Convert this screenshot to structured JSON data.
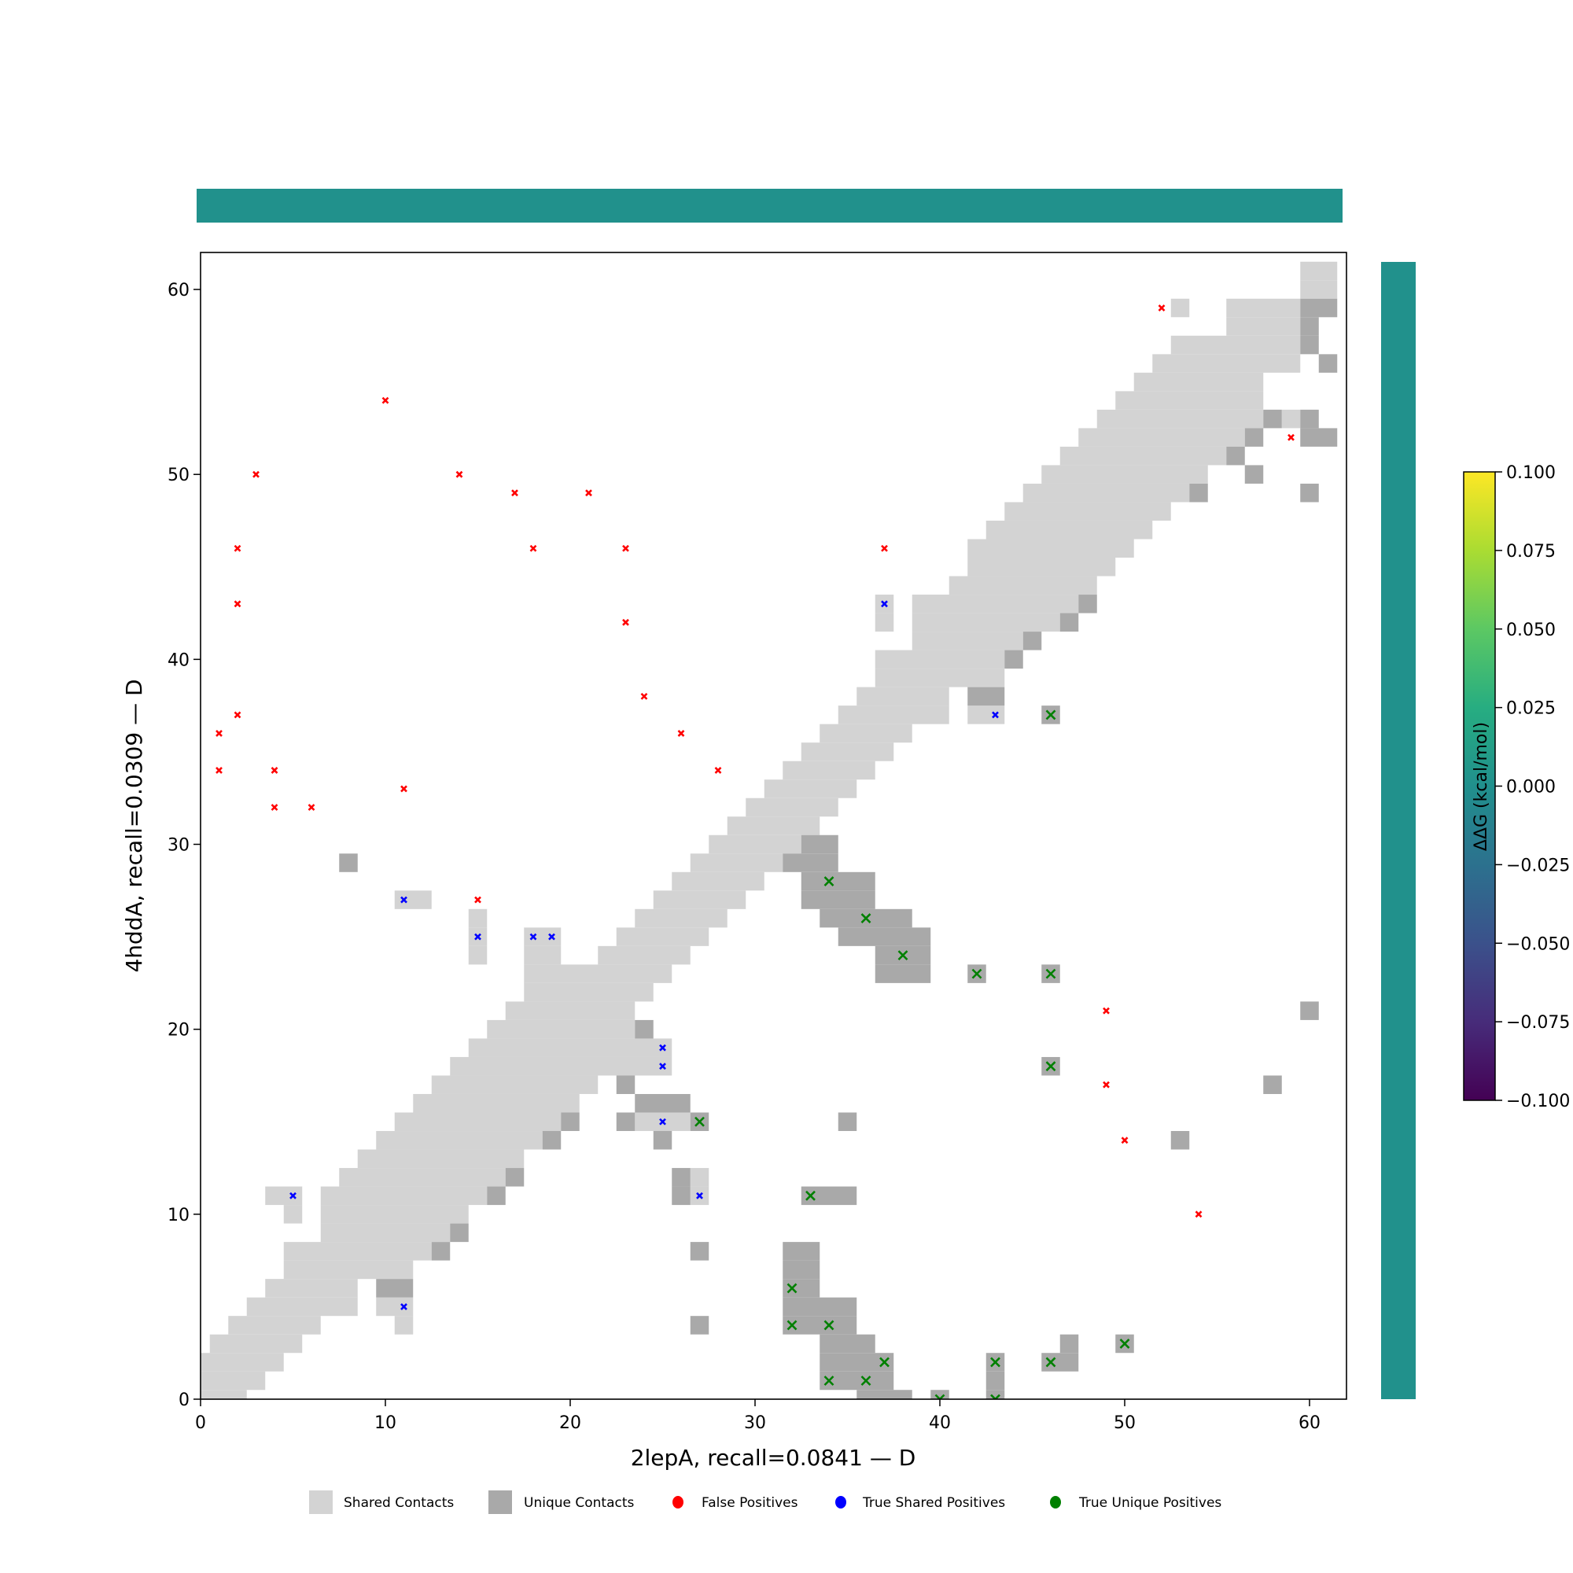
{
  "chart_data": {
    "type": "heatmap",
    "xlabel": "2lepA, recall=0.0841 — D",
    "ylabel": "4hddA, recall=0.0309 — D",
    "xlim": [
      0,
      62
    ],
    "ylim": [
      0,
      62
    ],
    "xticks": [
      "0",
      "10",
      "20",
      "30",
      "40",
      "50",
      "60"
    ],
    "yticks": [
      "0",
      "10",
      "20",
      "30",
      "40",
      "50",
      "60"
    ],
    "colors": {
      "shared": "#d3d3d3",
      "unique": "#a9a9a9",
      "false_pos": "#ff0000",
      "true_shared": "#0000ff",
      "true_unique": "#008000",
      "ddg_bar": "#21918c"
    },
    "colorbar": {
      "label": "ΔΔG (kcal/mol)",
      "range": [
        -0.1,
        0.1
      ],
      "ticks": [
        "−0.100",
        "−0.075",
        "−0.050",
        "−0.025",
        "0.000",
        "0.025",
        "0.050",
        "0.075",
        "0.100"
      ]
    },
    "legend": {
      "placement": "bottom-center",
      "items": [
        "Shared Contacts",
        "Unique Contacts",
        "False Positives",
        "True Shared Positives",
        "True Unique Positives"
      ]
    },
    "shared_contacts_rows": [
      [
        0,
        0,
        2
      ],
      [
        1,
        0,
        3
      ],
      [
        2,
        0,
        4
      ],
      [
        3,
        1,
        5
      ],
      [
        4,
        2,
        6
      ],
      [
        4,
        11,
        11
      ],
      [
        5,
        3,
        8
      ],
      [
        5,
        10,
        11
      ],
      [
        6,
        4,
        8
      ],
      [
        7,
        5,
        11
      ],
      [
        8,
        5,
        12
      ],
      [
        9,
        7,
        13
      ],
      [
        10,
        7,
        14
      ],
      [
        10,
        5,
        5
      ],
      [
        11,
        7,
        15
      ],
      [
        11,
        4,
        5
      ],
      [
        11,
        27,
        27
      ],
      [
        12,
        8,
        16
      ],
      [
        12,
        27,
        27
      ],
      [
        13,
        9,
        17
      ],
      [
        14,
        10,
        18
      ],
      [
        15,
        11,
        19
      ],
      [
        15,
        24,
        26
      ],
      [
        16,
        12,
        20
      ],
      [
        17,
        13,
        21
      ],
      [
        18,
        14,
        25
      ],
      [
        19,
        15,
        25
      ],
      [
        20,
        16,
        23
      ],
      [
        21,
        17,
        23
      ],
      [
        22,
        18,
        24
      ],
      [
        23,
        18,
        25
      ],
      [
        24,
        18,
        19
      ],
      [
        24,
        22,
        26
      ],
      [
        24,
        15,
        15
      ],
      [
        25,
        18,
        19
      ],
      [
        25,
        23,
        27
      ],
      [
        25,
        15,
        15
      ],
      [
        26,
        24,
        28
      ],
      [
        26,
        15,
        15
      ],
      [
        27,
        25,
        29
      ],
      [
        27,
        11,
        12
      ],
      [
        28,
        26,
        30
      ],
      [
        29,
        27,
        31
      ],
      [
        30,
        28,
        32
      ],
      [
        31,
        29,
        33
      ],
      [
        32,
        30,
        34
      ],
      [
        33,
        31,
        35
      ],
      [
        34,
        32,
        36
      ],
      [
        35,
        33,
        37
      ],
      [
        36,
        34,
        38
      ],
      [
        37,
        35,
        40
      ],
      [
        37,
        42,
        43
      ],
      [
        38,
        36,
        40
      ],
      [
        39,
        37,
        43
      ],
      [
        40,
        37,
        43
      ],
      [
        41,
        39,
        44
      ],
      [
        42,
        39,
        46
      ],
      [
        42,
        37,
        37
      ],
      [
        43,
        39,
        47
      ],
      [
        43,
        37,
        37
      ],
      [
        44,
        41,
        48
      ],
      [
        45,
        42,
        49
      ],
      [
        46,
        42,
        50
      ],
      [
        47,
        43,
        51
      ],
      [
        48,
        44,
        52
      ],
      [
        49,
        45,
        53
      ],
      [
        50,
        46,
        54
      ],
      [
        51,
        47,
        55
      ],
      [
        52,
        48,
        56
      ],
      [
        53,
        49,
        57
      ],
      [
        53,
        59,
        59
      ],
      [
        54,
        50,
        57
      ],
      [
        55,
        51,
        57
      ],
      [
        56,
        52,
        59
      ],
      [
        57,
        53,
        59
      ],
      [
        58,
        56,
        59
      ],
      [
        59,
        56,
        59
      ],
      [
        59,
        53,
        53
      ],
      [
        60,
        60,
        61
      ],
      [
        61,
        60,
        61
      ]
    ],
    "unique_contacts_rows": [
      [
        0,
        36,
        38
      ],
      [
        0,
        40,
        40
      ],
      [
        0,
        43,
        43
      ],
      [
        1,
        34,
        37
      ],
      [
        1,
        43,
        43
      ],
      [
        2,
        34,
        37
      ],
      [
        2,
        43,
        43
      ],
      [
        2,
        46,
        47
      ],
      [
        3,
        34,
        36
      ],
      [
        3,
        47,
        47
      ],
      [
        3,
        50,
        50
      ],
      [
        4,
        27,
        27
      ],
      [
        4,
        32,
        35
      ],
      [
        5,
        32,
        35
      ],
      [
        6,
        10,
        11
      ],
      [
        6,
        32,
        33
      ],
      [
        7,
        32,
        33
      ],
      [
        8,
        13,
        13
      ],
      [
        8,
        27,
        27
      ],
      [
        8,
        32,
        33
      ],
      [
        9,
        14,
        14
      ],
      [
        11,
        16,
        16
      ],
      [
        11,
        26,
        26
      ],
      [
        11,
        33,
        35
      ],
      [
        12,
        17,
        17
      ],
      [
        12,
        26,
        26
      ],
      [
        14,
        19,
        19
      ],
      [
        14,
        25,
        25
      ],
      [
        14,
        53,
        53
      ],
      [
        15,
        20,
        20
      ],
      [
        15,
        23,
        23
      ],
      [
        15,
        27,
        27
      ],
      [
        15,
        35,
        35
      ],
      [
        16,
        24,
        26
      ],
      [
        17,
        23,
        23
      ],
      [
        17,
        58,
        58
      ],
      [
        18,
        46,
        46
      ],
      [
        20,
        24,
        24
      ],
      [
        21,
        60,
        60
      ],
      [
        23,
        37,
        39
      ],
      [
        23,
        42,
        42
      ],
      [
        23,
        46,
        46
      ],
      [
        24,
        37,
        39
      ],
      [
        25,
        35,
        39
      ],
      [
        26,
        34,
        38
      ],
      [
        27,
        33,
        36
      ],
      [
        28,
        33,
        36
      ],
      [
        29,
        8,
        8
      ],
      [
        29,
        32,
        34
      ],
      [
        30,
        33,
        34
      ],
      [
        37,
        46,
        46
      ],
      [
        38,
        42,
        43
      ],
      [
        40,
        44,
        44
      ],
      [
        41,
        45,
        45
      ],
      [
        42,
        47,
        47
      ],
      [
        43,
        48,
        48
      ],
      [
        49,
        54,
        54
      ],
      [
        49,
        60,
        60
      ],
      [
        50,
        57,
        57
      ],
      [
        51,
        56,
        56
      ],
      [
        52,
        57,
        57
      ],
      [
        52,
        60,
        61
      ],
      [
        53,
        58,
        58
      ],
      [
        53,
        60,
        60
      ],
      [
        56,
        61,
        61
      ],
      [
        57,
        60,
        60
      ],
      [
        58,
        60,
        60
      ],
      [
        59,
        60,
        61
      ]
    ],
    "false_positives": [
      [
        1,
        36
      ],
      [
        1,
        34
      ],
      [
        2,
        46
      ],
      [
        2,
        43
      ],
      [
        2,
        37
      ],
      [
        3,
        50
      ],
      [
        4,
        34
      ],
      [
        4,
        32
      ],
      [
        6,
        32
      ],
      [
        10,
        54
      ],
      [
        11,
        33
      ],
      [
        14,
        50
      ],
      [
        17,
        49
      ],
      [
        18,
        46
      ],
      [
        21,
        49
      ],
      [
        23,
        46
      ],
      [
        23,
        42
      ],
      [
        24,
        38
      ],
      [
        26,
        36
      ],
      [
        28,
        34
      ],
      [
        15,
        27
      ],
      [
        37,
        46
      ],
      [
        52,
        59
      ],
      [
        59,
        52
      ],
      [
        49,
        21
      ],
      [
        49,
        17
      ],
      [
        50,
        14
      ],
      [
        54,
        10
      ]
    ],
    "true_shared_positives": [
      [
        5,
        11
      ],
      [
        11,
        5
      ],
      [
        11,
        27
      ],
      [
        15,
        25
      ],
      [
        18,
        25
      ],
      [
        19,
        25
      ],
      [
        25,
        19
      ],
      [
        25,
        18
      ],
      [
        25,
        15
      ],
      [
        27,
        11
      ],
      [
        37,
        43
      ],
      [
        43,
        37
      ]
    ],
    "true_unique_positives": [
      [
        27,
        15
      ],
      [
        34,
        28
      ],
      [
        36,
        26
      ],
      [
        38,
        24
      ],
      [
        42,
        23
      ],
      [
        46,
        23
      ],
      [
        46,
        18
      ],
      [
        33,
        11
      ],
      [
        32,
        6
      ],
      [
        32,
        4
      ],
      [
        34,
        4
      ],
      [
        50,
        3
      ],
      [
        37,
        2
      ],
      [
        43,
        2
      ],
      [
        46,
        2
      ],
      [
        34,
        1
      ],
      [
        36,
        1
      ],
      [
        40,
        0
      ],
      [
        43,
        0
      ],
      [
        46,
        37
      ]
    ]
  }
}
